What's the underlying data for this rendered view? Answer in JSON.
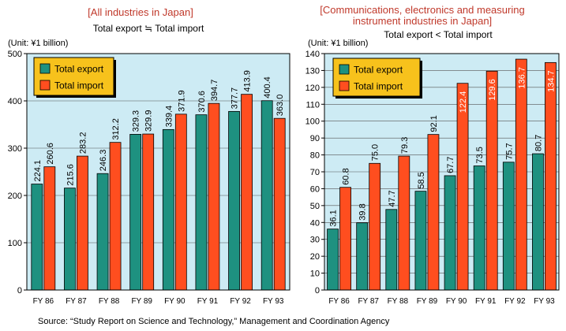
{
  "colors": {
    "plot_bg": "#cdebf4",
    "export": "#1e9180",
    "import": "#ff4e1f",
    "legend_bg": "#f7c21c",
    "title": "#c0392b",
    "grid": "#555555"
  },
  "source": "Source: “Study Report on Science and Technology,” Management and Coordination Agency",
  "chart_data": [
    {
      "type": "bar",
      "title": "[All industries in Japan]",
      "subtitle": "Total export ≒ Total import",
      "unit": "(Unit: ¥1 billion)",
      "categories": [
        "FY86",
        "FY87",
        "FY88",
        "FY89",
        "FY90",
        "FY91",
        "FY92",
        "FY93"
      ],
      "series": [
        {
          "name": "Total export",
          "values": [
            224.1,
            215.6,
            246.3,
            329.3,
            339.4,
            370.6,
            377.7,
            400.4
          ],
          "labels": [
            "224.1",
            "215.6",
            "246.3",
            "329.3",
            "339.4",
            "370.6",
            "377.7",
            "400.4"
          ]
        },
        {
          "name": "Total import",
          "values": [
            260.6,
            283.2,
            312.2,
            329.9,
            371.9,
            394.7,
            413.9,
            363.0
          ],
          "labels": [
            "260.6",
            "283.2",
            "312.2",
            "329.9",
            "371.9",
            "394.7",
            "413.9",
            "363.0"
          ]
        }
      ],
      "ylim": [
        0,
        500
      ],
      "yticks": [
        0,
        100,
        200,
        300,
        400,
        500
      ],
      "grid": true,
      "legend": "top-left"
    },
    {
      "type": "bar",
      "title": "[Communications, electronics and measuring instrument industries in Japan]",
      "title_lines": [
        "[Communications, electronics and measuring",
        "instrument industries in Japan]"
      ],
      "subtitle": "Total export < Total import",
      "unit": "(Unit: ¥1 billion)",
      "categories": [
        "FY86",
        "FY87",
        "FY88",
        "FY89",
        "FY90",
        "FY91",
        "FY92",
        "FY93"
      ],
      "series": [
        {
          "name": "Total export",
          "values": [
            36.1,
            39.8,
            47.7,
            58.5,
            67.7,
            73.5,
            75.7,
            80.7
          ],
          "labels": [
            "36.1",
            "39.8",
            "47.7",
            "58.5",
            "67.7",
            "73.5",
            "75.7",
            "80.7"
          ]
        },
        {
          "name": "Total import",
          "values": [
            60.8,
            75.0,
            79.3,
            92.1,
            122.4,
            129.6,
            136.7,
            134.7
          ],
          "labels": [
            "60.8",
            "75.0",
            "79.3",
            "92.1",
            "122.4",
            "129.6",
            "136.7",
            "134.7"
          ]
        }
      ],
      "ylim": [
        0,
        140
      ],
      "yticks": [
        0,
        10,
        20,
        30,
        40,
        50,
        60,
        70,
        80,
        90,
        100,
        110,
        120,
        130,
        140
      ],
      "grid": true,
      "legend": "top-left"
    }
  ]
}
